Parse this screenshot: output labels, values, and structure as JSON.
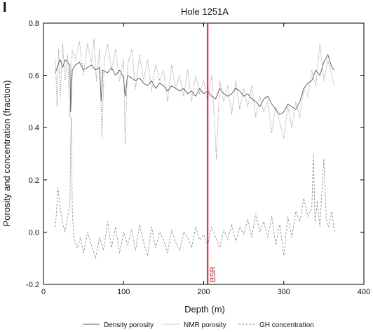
{
  "panel_label": "I",
  "chart_data": {
    "type": "line",
    "title": "Hole 1251A",
    "xlabel": "Depth (m)",
    "ylabel": "Porosity and concentration (fraction)",
    "xlim": [
      0,
      400
    ],
    "ylim": [
      -0.2,
      0.8
    ],
    "xticks": [
      0,
      100,
      200,
      300,
      400
    ],
    "yticks": [
      -0.2,
      0.0,
      0.2,
      0.4,
      0.6,
      0.8
    ],
    "ytick_labels": [
      "-0.2",
      "0.0",
      "0.2",
      "0.4",
      "0.6",
      "0.8"
    ],
    "grid": false,
    "legend_position": "bottom",
    "annotations": [
      {
        "type": "vline",
        "x": 205,
        "label": "BSR",
        "color": "#d0253a"
      }
    ],
    "series": [
      {
        "name": "Density porosity",
        "style": "solid",
        "color": "#555555",
        "x": [
          15,
          18,
          21,
          24,
          27,
          30,
          33,
          34,
          36,
          40,
          45,
          50,
          55,
          60,
          65,
          70,
          72,
          74,
          80,
          85,
          90,
          95,
          100,
          102,
          105,
          110,
          115,
          120,
          125,
          130,
          135,
          140,
          145,
          150,
          155,
          160,
          165,
          170,
          175,
          180,
          185,
          190,
          195,
          200,
          205,
          210,
          215,
          220,
          225,
          230,
          235,
          240,
          245,
          250,
          255,
          260,
          265,
          270,
          275,
          280,
          285,
          290,
          295,
          300,
          305,
          310,
          315,
          320,
          325,
          330,
          335,
          340,
          345,
          350,
          355,
          360,
          363
        ],
        "y": [
          0.61,
          0.64,
          0.66,
          0.63,
          0.66,
          0.65,
          0.64,
          0.46,
          0.62,
          0.64,
          0.65,
          0.62,
          0.63,
          0.64,
          0.62,
          0.63,
          0.5,
          0.62,
          0.61,
          0.63,
          0.6,
          0.62,
          0.59,
          0.52,
          0.6,
          0.59,
          0.58,
          0.59,
          0.57,
          0.56,
          0.58,
          0.55,
          0.57,
          0.56,
          0.54,
          0.56,
          0.55,
          0.54,
          0.55,
          0.53,
          0.54,
          0.52,
          0.55,
          0.53,
          0.54,
          0.52,
          0.51,
          0.55,
          0.53,
          0.52,
          0.53,
          0.55,
          0.54,
          0.52,
          0.53,
          0.51,
          0.5,
          0.48,
          0.51,
          0.52,
          0.49,
          0.47,
          0.45,
          0.46,
          0.49,
          0.48,
          0.47,
          0.5,
          0.55,
          0.57,
          0.58,
          0.62,
          0.6,
          0.65,
          0.68,
          0.63,
          0.62
        ]
      },
      {
        "name": "NMR porosity",
        "style": "dotted",
        "color": "#888888",
        "x": [
          15,
          17,
          19,
          21,
          24,
          27,
          30,
          33,
          36,
          40,
          45,
          50,
          55,
          60,
          63,
          66,
          70,
          73,
          76,
          80,
          85,
          90,
          95,
          100,
          102,
          105,
          110,
          115,
          120,
          125,
          130,
          135,
          140,
          145,
          150,
          155,
          160,
          165,
          170,
          175,
          180,
          185,
          190,
          195,
          200,
          205,
          210,
          213,
          216,
          220,
          225,
          230,
          235,
          240,
          245,
          250,
          255,
          260,
          265,
          270,
          275,
          280,
          285,
          290,
          295,
          300,
          305,
          310,
          315,
          320,
          325,
          330,
          335,
          340,
          345,
          350,
          355,
          360,
          363
        ],
        "y": [
          0.66,
          0.48,
          0.7,
          0.52,
          0.72,
          0.58,
          0.68,
          0.44,
          0.7,
          0.66,
          0.73,
          0.6,
          0.72,
          0.65,
          0.74,
          0.58,
          0.7,
          0.36,
          0.66,
          0.72,
          0.62,
          0.7,
          0.58,
          0.66,
          0.34,
          0.64,
          0.7,
          0.55,
          0.68,
          0.58,
          0.66,
          0.54,
          0.64,
          0.58,
          0.62,
          0.5,
          0.64,
          0.55,
          0.6,
          0.52,
          0.62,
          0.5,
          0.6,
          0.53,
          0.58,
          0.5,
          0.6,
          0.44,
          0.28,
          0.58,
          0.5,
          0.56,
          0.45,
          0.58,
          0.47,
          0.55,
          0.48,
          0.56,
          0.44,
          0.52,
          0.46,
          0.5,
          0.38,
          0.48,
          0.42,
          0.36,
          0.48,
          0.4,
          0.5,
          0.44,
          0.55,
          0.52,
          0.62,
          0.56,
          0.72,
          0.58,
          0.66,
          0.6,
          0.56
        ]
      },
      {
        "name": "GH concentration",
        "style": "dashed",
        "color": "#888888",
        "x": [
          15,
          18,
          21,
          24,
          27,
          30,
          33,
          34,
          35,
          36,
          38,
          42,
          46,
          50,
          55,
          60,
          65,
          70,
          75,
          80,
          85,
          90,
          95,
          100,
          105,
          110,
          115,
          120,
          125,
          130,
          135,
          140,
          145,
          150,
          155,
          160,
          165,
          170,
          175,
          180,
          185,
          190,
          195,
          200,
          205,
          210,
          215,
          220,
          225,
          230,
          235,
          240,
          245,
          250,
          255,
          260,
          265,
          270,
          275,
          280,
          285,
          290,
          295,
          300,
          305,
          310,
          315,
          320,
          325,
          330,
          335,
          337,
          339,
          342,
          345,
          348,
          350,
          353,
          356,
          360,
          363
        ],
        "y": [
          0.02,
          0.17,
          0.09,
          0.03,
          0.0,
          0.06,
          0.1,
          0.35,
          0.44,
          0.08,
          -0.02,
          -0.06,
          -0.02,
          -0.08,
          0.0,
          -0.05,
          -0.1,
          -0.02,
          -0.07,
          0.04,
          -0.06,
          0.02,
          -0.08,
          0.0,
          -0.05,
          0.01,
          -0.07,
          0.03,
          -0.04,
          -0.09,
          0.02,
          -0.06,
          0.0,
          -0.03,
          -0.08,
          0.01,
          -0.04,
          -0.07,
          0.0,
          -0.02,
          -0.06,
          0.02,
          -0.03,
          -0.01,
          -0.05,
          0.02,
          -0.02,
          -0.06,
          0.01,
          -0.03,
          0.03,
          -0.04,
          0.02,
          -0.01,
          0.05,
          -0.02,
          0.07,
          0.0,
          0.04,
          -0.02,
          0.06,
          -0.05,
          0.03,
          -0.09,
          0.06,
          -0.02,
          0.08,
          0.04,
          0.13,
          0.06,
          0.09,
          0.3,
          0.04,
          0.12,
          0.02,
          0.18,
          0.28,
          0.05,
          0.02,
          0.08,
          0.0
        ]
      }
    ]
  }
}
